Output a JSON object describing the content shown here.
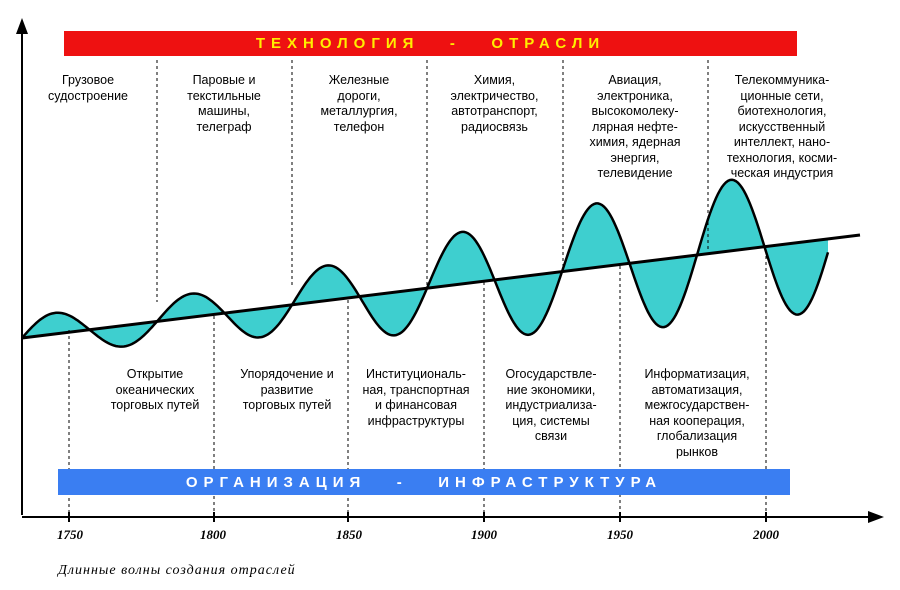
{
  "banners": {
    "top": "ТЕХНОЛОГИЯ   -   ОТРАСЛИ",
    "bottom": "ОРГАНИЗАЦИЯ   -   ИНФРАСТРУКТУРА",
    "top_color": "#ee1111",
    "top_text_color": "#ffee00",
    "bottom_color": "#3a7ef2",
    "bottom_text_color": "#ffffff"
  },
  "wave_fill_color": "#3ecfcf",
  "technology_labels": [
    "Грузовое\nсудостроение",
    "Паровые и\nтекстильные\nмашины,\nтелеграф",
    "Железные\nдороги,\nметаллургия,\nтелефон",
    "Химия,\nэлектричество,\nавтотранспорт,\nрадиосвязь",
    "Авиация,\nэлектроника,\nвысокомолеку-\nлярная нефте-\nхимия, ядерная\nэнергия,\nтелевидение",
    "Телекоммуника-\nционные сети,\nбиотехнология,\nискусственный\nинтеллект, нано-\nтехнология, косми-\nческая индустрия"
  ],
  "infrastructure_labels": [
    "Открытие\nокеанических\nторговых путей",
    "Упорядочение и\nразвитие\nторговых путей",
    "Институциональ-\nная, транспортная\nи финансовая\nинфраструктуры",
    "Огосударствле-\nние экономики,\nиндустриализа-\nция, системы\nсвязи",
    "Информатизация,\nавтоматизация,\nмежгосударствен-\nная кооперация,\nглобализация\nрынков"
  ],
  "x_ticks": [
    "1750",
    "1800",
    "1850",
    "1900",
    "1950",
    "2000"
  ],
  "caption": "Длинные волны создания отраслей"
}
